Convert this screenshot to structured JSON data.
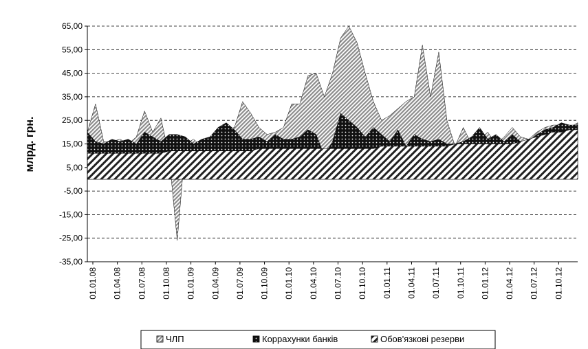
{
  "chart_data": {
    "type": "area",
    "y_label": "млрд. грн.",
    "categories": [
      "01.01.08",
      null,
      null,
      "01.04.08",
      null,
      null,
      "01.07.08",
      null,
      null,
      "01.10.08",
      null,
      null,
      "01.01.09",
      null,
      null,
      "01.04.09",
      null,
      null,
      "01.07.09",
      null,
      null,
      "01.10.09",
      null,
      null,
      "01.01.10",
      null,
      null,
      "01.04.10",
      null,
      null,
      "01.07.10",
      null,
      null,
      "01.10.10",
      null,
      null,
      "01.01.11",
      null,
      null,
      "01.04.11",
      null,
      null,
      "01.07.11",
      null,
      null,
      "01.10.11",
      null,
      null,
      "01.01.12",
      null,
      null,
      "01.04.12",
      null,
      null,
      "01.07.12",
      null,
      null,
      "01.10.12",
      null,
      null,
      null
    ],
    "series": [
      {
        "name": "ЧЛП",
        "color": "#8c8c8c",
        "values": [
          20,
          32,
          16,
          16,
          17,
          15,
          18,
          29,
          20,
          26,
          10,
          -26,
          15,
          17,
          14,
          15,
          17,
          21,
          22,
          33,
          28,
          22,
          19,
          20,
          22,
          32,
          32,
          44,
          45,
          35,
          45,
          60,
          65,
          58,
          45,
          33,
          25,
          27,
          30,
          33,
          35,
          57,
          35,
          54,
          25,
          14,
          22,
          15,
          17,
          20,
          15,
          18,
          22,
          18,
          17,
          20,
          22,
          23,
          23,
          22,
          24
        ]
      },
      {
        "name": "Коррахунки банків",
        "color": "#111111",
        "values": [
          20,
          16,
          15,
          17,
          16,
          17,
          15,
          20,
          18,
          16,
          19,
          19,
          18,
          15,
          17,
          18,
          22,
          24,
          21,
          17,
          17,
          18,
          16,
          19,
          17,
          17,
          18,
          21,
          19,
          10,
          16,
          28,
          25,
          22,
          18,
          22,
          19,
          16,
          21,
          14,
          19,
          17,
          16,
          17,
          15,
          15,
          16,
          18,
          22,
          17,
          19,
          16,
          19,
          16,
          16,
          19,
          21,
          22,
          24,
          23,
          23
        ]
      },
      {
        "name": "Обов'язкові резерви",
        "color": "#222222",
        "values": [
          11,
          11,
          11,
          11,
          11,
          11,
          11,
          11,
          11,
          11,
          12,
          12,
          12,
          12,
          12,
          12,
          12,
          12,
          12,
          12,
          12,
          13,
          13,
          13,
          13,
          13,
          13,
          13,
          13,
          13,
          13,
          13,
          13,
          13,
          13,
          13,
          14,
          14,
          14,
          14,
          14,
          14,
          14,
          14,
          14,
          15,
          15,
          15,
          15,
          15,
          15,
          15,
          15,
          16,
          17,
          18,
          19,
          20,
          20,
          21,
          21
        ]
      }
    ],
    "ylim": [
      -35,
      65
    ],
    "yticks": [
      {
        "value": 65,
        "label": "65,00"
      },
      {
        "value": 55,
        "label": "55,00"
      },
      {
        "value": 45,
        "label": "45,00"
      },
      {
        "value": 35,
        "label": "35,00"
      },
      {
        "value": 25,
        "label": "25,00"
      },
      {
        "value": 15,
        "label": "15,00"
      },
      {
        "value": 5,
        "label": "5,00"
      },
      {
        "value": -5,
        "label": "-5,00"
      },
      {
        "value": -15,
        "label": "-15,00"
      },
      {
        "value": -25,
        "label": "-25,00"
      },
      {
        "value": -35,
        "label": "-35,00"
      }
    ],
    "grid": true,
    "legend": "bottom"
  }
}
